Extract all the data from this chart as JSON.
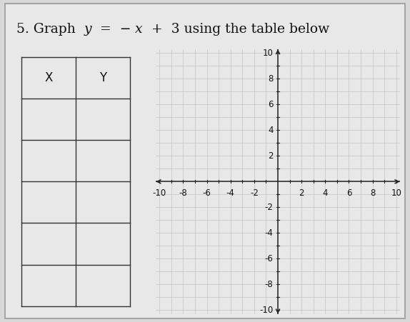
{
  "title_parts": [
    "5. Graph  ",
    "y",
    "  =  − ",
    "x",
    "  +  3 using the table below"
  ],
  "title_styles": [
    "normal",
    "italic",
    "normal",
    "italic",
    "normal"
  ],
  "table_headers": [
    "X",
    "Y"
  ],
  "table_rows": 5,
  "axis_min": -10,
  "axis_max": 10,
  "x_tick_values": [
    -10,
    -8,
    -6,
    -4,
    -2,
    2,
    4,
    6,
    8,
    10
  ],
  "x_tick_labels": [
    "-10",
    "-8",
    "-6",
    "-4",
    "-2",
    "2",
    "4",
    "6",
    "8",
    "10"
  ],
  "y_tick_values": [
    -10,
    -8,
    -6,
    -4,
    -2,
    2,
    4,
    6,
    8,
    10
  ],
  "y_tick_labels": [
    "-10",
    "-8",
    "-6",
    "-4",
    "-2",
    "2",
    "4",
    "6",
    "8",
    "10"
  ],
  "bg_color": "#d8d8d8",
  "card_color": "#e8e8e8",
  "grid_color": "#bbbbbb",
  "axis_color": "#222222",
  "text_color": "#111111",
  "table_line_color": "#333333",
  "title_fontsize": 13.5,
  "tick_fontsize": 8.5,
  "header_fontsize": 12
}
